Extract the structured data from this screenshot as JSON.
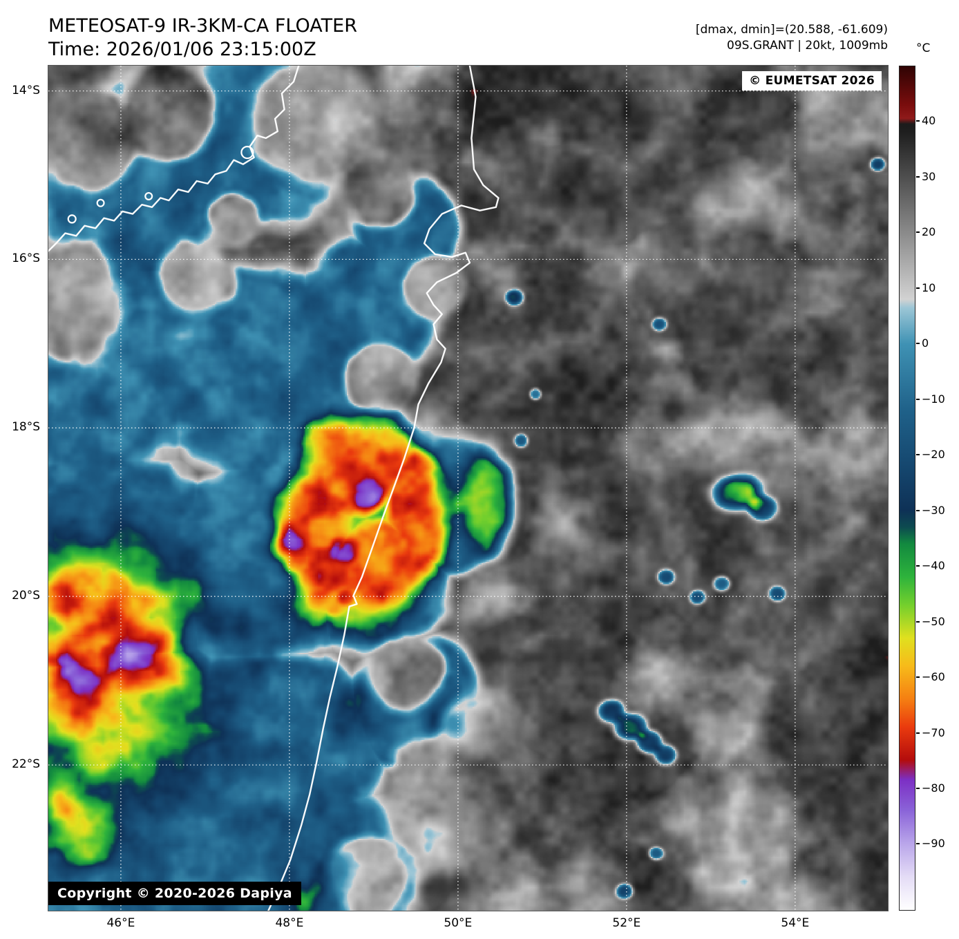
{
  "header": {
    "title": "METEOSAT-9 IR-3KM-CA FLOATER",
    "time_line": "Time: 2026/01/06 23:15:00Z",
    "info_line1": "[dmax, dmin]=(20.588, -61.609)",
    "info_line2": "09S.GRANT | 20kt, 1009mb"
  },
  "map": {
    "copyright_badge": "© EUMETSAT 2026",
    "bottom_badge": "Copyright © 2020-2026 Dapiya",
    "lon_range": [
      45.14,
      55.1
    ],
    "lat_range": [
      -23.73,
      -13.7
    ],
    "lat_ticks": [
      {
        "v": -14,
        "label": "14°S"
      },
      {
        "v": -16,
        "label": "16°S"
      },
      {
        "v": -18,
        "label": "18°S"
      },
      {
        "v": -20,
        "label": "20°S"
      },
      {
        "v": -22,
        "label": "22°S"
      }
    ],
    "lon_ticks": [
      {
        "v": 46,
        "label": "46°E"
      },
      {
        "v": 48,
        "label": "48°E"
      },
      {
        "v": 50,
        "label": "50°E"
      },
      {
        "v": 52,
        "label": "52°E"
      },
      {
        "v": 54,
        "label": "54°E"
      }
    ],
    "grid_color": "#ffffff",
    "coast_color": "#ffffff"
  },
  "colorbar": {
    "unit": "°C",
    "range": [
      50,
      -102
    ],
    "ticks": [
      {
        "v": 40,
        "label": "40"
      },
      {
        "v": 30,
        "label": "30"
      },
      {
        "v": 20,
        "label": "20"
      },
      {
        "v": 10,
        "label": "10"
      },
      {
        "v": 0,
        "label": "0"
      },
      {
        "v": -10,
        "label": "−10"
      },
      {
        "v": -20,
        "label": "−20"
      },
      {
        "v": -30,
        "label": "−30"
      },
      {
        "v": -40,
        "label": "−40"
      },
      {
        "v": -50,
        "label": "−50"
      },
      {
        "v": -60,
        "label": "−60"
      },
      {
        "v": -70,
        "label": "−70"
      },
      {
        "v": -80,
        "label": "−80"
      },
      {
        "v": -90,
        "label": "−90"
      }
    ],
    "stops": [
      [
        50,
        "#2f0404"
      ],
      [
        43,
        "#7a0d0d"
      ],
      [
        40.6,
        "#8f1a1a"
      ],
      [
        39.6,
        "#1b1b1b"
      ],
      [
        38,
        "#1f1f1f"
      ],
      [
        8,
        "#d2d2d2"
      ],
      [
        6.5,
        "#9cc6d6"
      ],
      [
        0,
        "#3f92b4"
      ],
      [
        -12,
        "#1f6189"
      ],
      [
        -22,
        "#15476f"
      ],
      [
        -30,
        "#0e3156"
      ],
      [
        -33,
        "#0d4a50"
      ],
      [
        -36,
        "#12893f"
      ],
      [
        -42,
        "#2eb33c"
      ],
      [
        -47,
        "#73cf2d"
      ],
      [
        -53,
        "#e0e01f"
      ],
      [
        -58,
        "#f7bb1a"
      ],
      [
        -64,
        "#f57f12"
      ],
      [
        -69,
        "#ea3b0e"
      ],
      [
        -75,
        "#b30c0c"
      ],
      [
        -78.5,
        "#7c2fc4"
      ],
      [
        -84,
        "#8a63d8"
      ],
      [
        -90,
        "#b9a5ea"
      ],
      [
        -96,
        "#e4dcf6"
      ],
      [
        -102,
        "#ffffff"
      ]
    ]
  },
  "scene": {
    "base_temp": 36,
    "shield_temp": -11,
    "shield": [
      [
        46.2,
        -15.1,
        1.35
      ],
      [
        47.7,
        -14.6,
        1.25
      ],
      [
        45.7,
        -17.2,
        1.6
      ],
      [
        47.6,
        -17.3,
        1.45
      ],
      [
        45.8,
        -19.6,
        1.6
      ],
      [
        47.7,
        -19.6,
        1.35
      ],
      [
        46.1,
        -21.9,
        1.6
      ],
      [
        47.8,
        -21.9,
        1.45
      ],
      [
        47.0,
        -23.4,
        1.4
      ],
      [
        48.5,
        -23.3,
        1.2
      ],
      [
        48.9,
        -16.6,
        0.95
      ],
      [
        49.4,
        -15.6,
        0.7
      ],
      [
        49.9,
        -18.9,
        0.85
      ],
      [
        49.5,
        -21.3,
        0.9
      ],
      [
        49.0,
        -19.9,
        0.9
      ],
      [
        48.6,
        -18.3,
        0.9
      ],
      [
        45.4,
        -23.3,
        0.9
      ]
    ],
    "warm_patches": [
      [
        45.55,
        -14.55,
        0.75
      ],
      [
        46.55,
        -14.25,
        0.65
      ],
      [
        45.35,
        -16.55,
        0.85
      ],
      [
        46.9,
        -16.2,
        0.55
      ],
      [
        48.35,
        -14.35,
        0.95
      ],
      [
        49.05,
        -15.15,
        0.55
      ],
      [
        47.35,
        -15.55,
        0.4
      ],
      [
        49.1,
        -17.4,
        0.5
      ],
      [
        49.75,
        -16.35,
        0.45
      ],
      [
        49.35,
        -20.9,
        0.55
      ],
      [
        49.9,
        -22.5,
        0.95
      ],
      [
        48.95,
        -23.35,
        0.6
      ],
      [
        50.3,
        -21.6,
        0.6
      ]
    ],
    "cells": [
      [
        45.75,
        -20.85,
        1.35,
        1.2,
        40,
        1
      ],
      [
        45.95,
        -19.95,
        0.8,
        0.62,
        26,
        1
      ],
      [
        45.4,
        -21.05,
        0.5,
        0.46,
        30,
        1.4
      ],
      [
        46.35,
        -20.72,
        0.46,
        0.4,
        27,
        1.4
      ],
      [
        45.28,
        -19.92,
        0.4,
        0.36,
        20,
        1
      ],
      [
        46.05,
        -21.95,
        0.7,
        0.5,
        18,
        1
      ],
      [
        45.6,
        -22.85,
        0.48,
        0.42,
        28,
        1.5
      ],
      [
        45.25,
        -22.45,
        0.28,
        0.28,
        22,
        1
      ],
      [
        48.88,
        -19.1,
        1.02,
        1.3,
        57,
        5
      ],
      [
        48.92,
        -18.8,
        0.22,
        0.2,
        14,
        2
      ],
      [
        48.66,
        -19.44,
        0.17,
        0.15,
        13,
        2
      ],
      [
        48.67,
        -20.02,
        0.1,
        0.1,
        12,
        2
      ],
      [
        50.32,
        -18.88,
        0.3,
        0.62,
        34,
        2
      ],
      [
        53.3,
        -18.78,
        0.3,
        0.22,
        72,
        2
      ],
      [
        53.62,
        -18.95,
        0.18,
        0.15,
        55,
        2
      ],
      [
        51.82,
        -21.36,
        0.15,
        0.13,
        62,
        2
      ],
      [
        52.05,
        -21.55,
        0.18,
        0.15,
        68,
        2
      ],
      [
        52.27,
        -21.73,
        0.15,
        0.13,
        62,
        2
      ],
      [
        52.47,
        -21.88,
        0.13,
        0.12,
        55,
        2
      ],
      [
        50.67,
        -16.45,
        0.1,
        0.09,
        52,
        2
      ],
      [
        52.39,
        -16.77,
        0.09,
        0.08,
        48,
        2
      ],
      [
        54.98,
        -14.87,
        0.09,
        0.08,
        55,
        2
      ],
      [
        52.47,
        -19.77,
        0.1,
        0.09,
        50,
        2
      ],
      [
        52.84,
        -20.01,
        0.09,
        0.08,
        48,
        2
      ],
      [
        53.13,
        -19.85,
        0.09,
        0.08,
        46,
        2
      ],
      [
        53.79,
        -19.97,
        0.1,
        0.09,
        50,
        2
      ],
      [
        51.98,
        -23.5,
        0.1,
        0.09,
        52,
        2
      ],
      [
        52.35,
        -23.05,
        0.09,
        0.08,
        46,
        2
      ],
      [
        50.75,
        -18.15,
        0.08,
        0.08,
        45,
        2
      ],
      [
        50.92,
        -17.6,
        0.07,
        0.07,
        42,
        2
      ],
      [
        46.7,
        -15.4,
        0.25,
        0.22,
        16,
        1
      ],
      [
        47.9,
        -14.9,
        0.3,
        0.25,
        13,
        1
      ],
      [
        47.95,
        -19.5,
        0.28,
        0.25,
        24,
        1
      ],
      [
        48.08,
        -20.15,
        0.24,
        0.22,
        20,
        1
      ],
      [
        48.75,
        -21.3,
        0.35,
        0.4,
        16,
        1
      ],
      [
        48.5,
        -23.25,
        0.3,
        0.27,
        26,
        1
      ],
      [
        48.2,
        -23.6,
        0.26,
        0.24,
        24,
        1
      ],
      [
        49.9,
        -21.5,
        0.3,
        0.27,
        20,
        1
      ],
      [
        49.75,
        -22.9,
        0.25,
        0.22,
        18,
        1
      ]
    ],
    "coastlines": [
      [
        [
          50.14,
          -13.7
        ],
        [
          50.21,
          -14.07
        ],
        [
          50.16,
          -14.56
        ],
        [
          50.19,
          -14.93
        ],
        [
          50.3,
          -15.12
        ],
        [
          50.48,
          -15.27
        ],
        [
          50.45,
          -15.38
        ],
        [
          50.26,
          -15.42
        ],
        [
          50.04,
          -15.36
        ],
        [
          49.81,
          -15.46
        ],
        [
          49.66,
          -15.64
        ],
        [
          49.6,
          -15.81
        ],
        [
          49.73,
          -15.94
        ],
        [
          49.93,
          -15.97
        ],
        [
          50.09,
          -15.92
        ],
        [
          50.14,
          -16.04
        ],
        [
          49.98,
          -16.16
        ],
        [
          49.75,
          -16.27
        ],
        [
          49.63,
          -16.4
        ],
        [
          49.71,
          -16.54
        ],
        [
          49.81,
          -16.65
        ],
        [
          49.71,
          -16.77
        ],
        [
          49.75,
          -16.95
        ],
        [
          49.85,
          -17.06
        ],
        [
          49.8,
          -17.22
        ],
        [
          49.65,
          -17.47
        ],
        [
          49.53,
          -17.72
        ],
        [
          49.48,
          -18.0
        ],
        [
          49.36,
          -18.37
        ],
        [
          49.24,
          -18.7
        ],
        [
          49.12,
          -19.03
        ],
        [
          48.99,
          -19.4
        ],
        [
          48.86,
          -19.77
        ],
        [
          48.76,
          -19.99
        ],
        [
          48.8,
          -20.09
        ],
        [
          48.71,
          -20.12
        ],
        [
          48.65,
          -20.46
        ],
        [
          48.57,
          -20.83
        ],
        [
          48.48,
          -21.2
        ],
        [
          48.4,
          -21.57
        ],
        [
          48.32,
          -21.98
        ],
        [
          48.24,
          -22.35
        ],
        [
          48.14,
          -22.72
        ],
        [
          48.01,
          -23.13
        ],
        [
          47.86,
          -23.49
        ],
        [
          47.75,
          -23.73
        ]
      ],
      [
        [
          48.11,
          -13.7
        ],
        [
          48.05,
          -13.89
        ],
        [
          47.91,
          -14.03
        ],
        [
          47.94,
          -14.22
        ],
        [
          47.83,
          -14.33
        ],
        [
          47.86,
          -14.48
        ],
        [
          47.72,
          -14.56
        ],
        [
          47.62,
          -14.53
        ],
        [
          47.53,
          -14.66
        ],
        [
          47.58,
          -14.79
        ],
        [
          47.45,
          -14.87
        ],
        [
          47.34,
          -14.82
        ],
        [
          47.25,
          -14.95
        ],
        [
          47.12,
          -14.99
        ],
        [
          47.03,
          -15.1
        ],
        [
          46.9,
          -15.07
        ],
        [
          46.8,
          -15.2
        ],
        [
          46.68,
          -15.17
        ],
        [
          46.57,
          -15.3
        ],
        [
          46.47,
          -15.27
        ],
        [
          46.37,
          -15.38
        ],
        [
          46.25,
          -15.35
        ],
        [
          46.14,
          -15.46
        ],
        [
          46.02,
          -15.43
        ],
        [
          45.92,
          -15.54
        ],
        [
          45.8,
          -15.51
        ],
        [
          45.7,
          -15.63
        ],
        [
          45.57,
          -15.6
        ],
        [
          45.47,
          -15.72
        ],
        [
          45.34,
          -15.69
        ],
        [
          45.24,
          -15.8
        ],
        [
          45.14,
          -15.9
        ]
      ]
    ],
    "islands": [
      [
        47.5,
        -14.73,
        0.07
      ],
      [
        45.42,
        -15.52,
        0.045
      ],
      [
        45.76,
        -15.33,
        0.04
      ],
      [
        46.33,
        -15.25,
        0.04
      ]
    ]
  }
}
